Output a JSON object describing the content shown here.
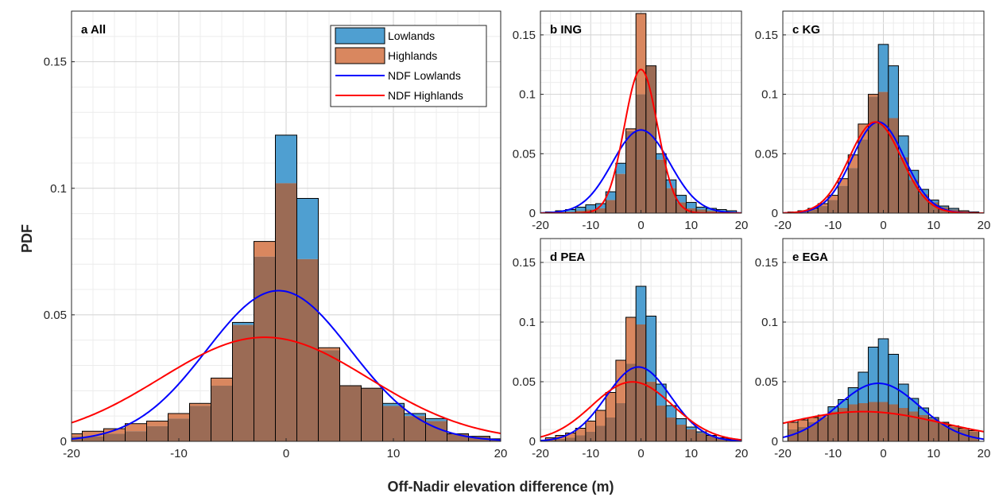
{
  "figure": {
    "xlabel": "Off-Nadir elevation difference (m)",
    "ylabel": "PDF"
  },
  "legend": {
    "entries": [
      {
        "label": "Lowlands",
        "kind": "bar",
        "color": "#4F9FD1"
      },
      {
        "label": "Highlands",
        "kind": "bar",
        "color": "#D9875F"
      },
      {
        "label": "NDF Lowlands",
        "kind": "line",
        "color": "#0000FF"
      },
      {
        "label": "NDF Highlands",
        "kind": "line",
        "color": "#FF0000"
      }
    ]
  },
  "colors": {
    "lowlands": "#4F9FD1",
    "highlands": "#D9875F",
    "overlap": "#9B6B55",
    "ndf_lowlands": "#0000FF",
    "ndf_highlands": "#FF0000"
  },
  "chart_data": [
    {
      "id": "a",
      "label": "a  All",
      "type": "bar",
      "xlim": [
        -20,
        20
      ],
      "ylim": [
        0,
        0.17
      ],
      "xticks": [
        -20,
        -10,
        0,
        10,
        20
      ],
      "yticks": [
        0,
        0.05,
        0.1,
        0.15
      ],
      "xticklabels": [
        "-20",
        "-10",
        "0",
        "10",
        "20"
      ],
      "yticklabels": [
        "0",
        "0.05",
        "0.1",
        "0.15"
      ],
      "bin_edges": [
        -21,
        -19,
        -17,
        -15,
        -13,
        -11,
        -9,
        -7,
        -5,
        -3,
        -1,
        1,
        3,
        5,
        7,
        9,
        11,
        13,
        15,
        17,
        19,
        21
      ],
      "series": [
        {
          "name": "Lowlands",
          "values": [
            0.002,
            0.002,
            0.003,
            0.004,
            0.006,
            0.009,
            0.014,
            0.022,
            0.047,
            0.073,
            0.121,
            0.096,
            0.036,
            0.022,
            0.021,
            0.015,
            0.011,
            0.009,
            0.003,
            0.002,
            0.001
          ]
        },
        {
          "name": "Highlands",
          "values": [
            0.003,
            0.004,
            0.005,
            0.007,
            0.008,
            0.011,
            0.015,
            0.025,
            0.046,
            0.079,
            0.102,
            0.072,
            0.037,
            0.022,
            0.021,
            0.014,
            0.01,
            0.008,
            0.003,
            0.002,
            0.001
          ]
        }
      ],
      "ndf": [
        {
          "name": "NDF Lowlands",
          "mu": -0.7,
          "sigma": 6.7
        },
        {
          "name": "NDF Highlands",
          "mu": -2.0,
          "sigma": 9.7
        }
      ]
    },
    {
      "id": "b",
      "label": "b  ING",
      "type": "bar",
      "xlim": [
        -20,
        20
      ],
      "ylim": [
        0,
        0.17
      ],
      "xticks": [
        -20,
        -10,
        0,
        10,
        20
      ],
      "yticks": [
        0,
        0.05,
        0.1,
        0.15
      ],
      "xticklabels": [
        "-20",
        "-10",
        "0",
        "10",
        "20"
      ],
      "yticklabels": [
        "0",
        "0.05",
        "0.1",
        "0.15"
      ],
      "bin_edges": [
        -19,
        -17,
        -15,
        -13,
        -11,
        -9,
        -7,
        -5,
        -3,
        -1,
        1,
        3,
        5,
        7,
        9,
        11,
        13,
        15,
        17,
        19
      ],
      "series": [
        {
          "name": "Lowlands",
          "values": [
            0.001,
            0.002,
            0.003,
            0.005,
            0.007,
            0.008,
            0.018,
            0.042,
            0.069,
            0.1,
            0.124,
            0.05,
            0.028,
            0.015,
            0.009,
            0.005,
            0.004,
            0.003,
            0.002
          ]
        },
        {
          "name": "Highlands",
          "values": [
            0.0,
            0.0,
            0.001,
            0.002,
            0.003,
            0.004,
            0.011,
            0.033,
            0.071,
            0.168,
            0.124,
            0.045,
            0.021,
            0.009,
            0.004,
            0.003,
            0.002,
            0.001,
            0.001
          ]
        }
      ],
      "ndf": [
        {
          "name": "NDF Lowlands",
          "mu": 0.0,
          "sigma": 5.7
        },
        {
          "name": "NDF Highlands",
          "mu": 0.0,
          "sigma": 3.3
        }
      ]
    },
    {
      "id": "c",
      "label": "c  KG",
      "type": "bar",
      "xlim": [
        -20,
        20
      ],
      "ylim": [
        0,
        0.17
      ],
      "xticks": [
        -20,
        -10,
        0,
        10,
        20
      ],
      "yticks": [
        0,
        0.05,
        0.1,
        0.15
      ],
      "xticklabels": [
        "-20",
        "-10",
        "0",
        "10",
        "20"
      ],
      "yticklabels": [
        "0",
        "0.05",
        "0.1",
        "0.15"
      ],
      "bin_edges": [
        -19,
        -17,
        -15,
        -13,
        -11,
        -9,
        -7,
        -5,
        -3,
        -1,
        1,
        3,
        5,
        7,
        9,
        11,
        13,
        15,
        17,
        19
      ],
      "series": [
        {
          "name": "Lowlands",
          "values": [
            0.001,
            0.002,
            0.003,
            0.006,
            0.011,
            0.023,
            0.038,
            0.062,
            0.098,
            0.142,
            0.124,
            0.065,
            0.036,
            0.02,
            0.011,
            0.006,
            0.004,
            0.002,
            0.001
          ]
        },
        {
          "name": "Highlands",
          "values": [
            0.001,
            0.002,
            0.004,
            0.008,
            0.015,
            0.029,
            0.049,
            0.075,
            0.1,
            0.102,
            0.08,
            0.047,
            0.028,
            0.016,
            0.009,
            0.005,
            0.003,
            0.002,
            0.001
          ]
        }
      ],
      "ndf": [
        {
          "name": "NDF Lowlands",
          "mu": -1.0,
          "sigma": 5.2
        },
        {
          "name": "NDF Highlands",
          "mu": -1.6,
          "sigma": 5.2
        }
      ]
    },
    {
      "id": "d",
      "label": "d  PEA",
      "type": "bar",
      "xlim": [
        -20,
        20
      ],
      "ylim": [
        0,
        0.17
      ],
      "xticks": [
        -20,
        -10,
        0,
        10,
        20
      ],
      "yticks": [
        0,
        0.05,
        0.1,
        0.15
      ],
      "xticklabels": [
        "-20",
        "-10",
        "0",
        "10",
        "20"
      ],
      "yticklabels": [
        "0",
        "0.05",
        "0.1",
        "0.15"
      ],
      "bin_edges": [
        -19,
        -17,
        -15,
        -13,
        -11,
        -9,
        -7,
        -5,
        -3,
        -1,
        1,
        3,
        5,
        7,
        9,
        11,
        13,
        15,
        17,
        19
      ],
      "series": [
        {
          "name": "Lowlands",
          "values": [
            0.001,
            0.002,
            0.003,
            0.005,
            0.008,
            0.013,
            0.02,
            0.032,
            0.065,
            0.13,
            0.105,
            0.048,
            0.03,
            0.019,
            0.012,
            0.008,
            0.005,
            0.003,
            0.002
          ]
        },
        {
          "name": "Highlands",
          "values": [
            0.003,
            0.005,
            0.007,
            0.011,
            0.017,
            0.026,
            0.041,
            0.068,
            0.104,
            0.098,
            0.05,
            0.03,
            0.02,
            0.014,
            0.01,
            0.007,
            0.005,
            0.003,
            0.002
          ]
        }
      ],
      "ndf": [
        {
          "name": "NDF Lowlands",
          "mu": -0.5,
          "sigma": 6.4
        },
        {
          "name": "NDF Highlands",
          "mu": -1.7,
          "sigma": 8.0
        }
      ]
    },
    {
      "id": "e",
      "label": "e  EGA",
      "type": "bar",
      "xlim": [
        -20,
        20
      ],
      "ylim": [
        0,
        0.17
      ],
      "xticks": [
        -20,
        -10,
        0,
        10,
        20
      ],
      "yticks": [
        0,
        0.05,
        0.1,
        0.15
      ],
      "xticklabels": [
        "-20",
        "-10",
        "0",
        "10",
        "20"
      ],
      "yticklabels": [
        "0",
        "0.05",
        "0.1",
        "0.15"
      ],
      "bin_edges": [
        -19,
        -17,
        -15,
        -13,
        -11,
        -9,
        -7,
        -5,
        -3,
        -1,
        1,
        3,
        5,
        7,
        9,
        11,
        13,
        15,
        17,
        19
      ],
      "series": [
        {
          "name": "Lowlands",
          "values": [
            0.01,
            0.012,
            0.016,
            0.02,
            0.029,
            0.035,
            0.045,
            0.058,
            0.079,
            0.086,
            0.073,
            0.048,
            0.036,
            0.028,
            0.02,
            0.016,
            0.012,
            0.01,
            0.008
          ]
        },
        {
          "name": "Highlands",
          "values": [
            0.016,
            0.018,
            0.02,
            0.022,
            0.025,
            0.028,
            0.031,
            0.032,
            0.033,
            0.033,
            0.031,
            0.028,
            0.025,
            0.022,
            0.019,
            0.016,
            0.013,
            0.011,
            0.009
          ]
        }
      ],
      "ndf": [
        {
          "name": "NDF Lowlands",
          "mu": -1.0,
          "sigma": 8.2
        },
        {
          "name": "NDF Highlands",
          "mu": -4.0,
          "sigma": 16.0
        }
      ]
    }
  ]
}
